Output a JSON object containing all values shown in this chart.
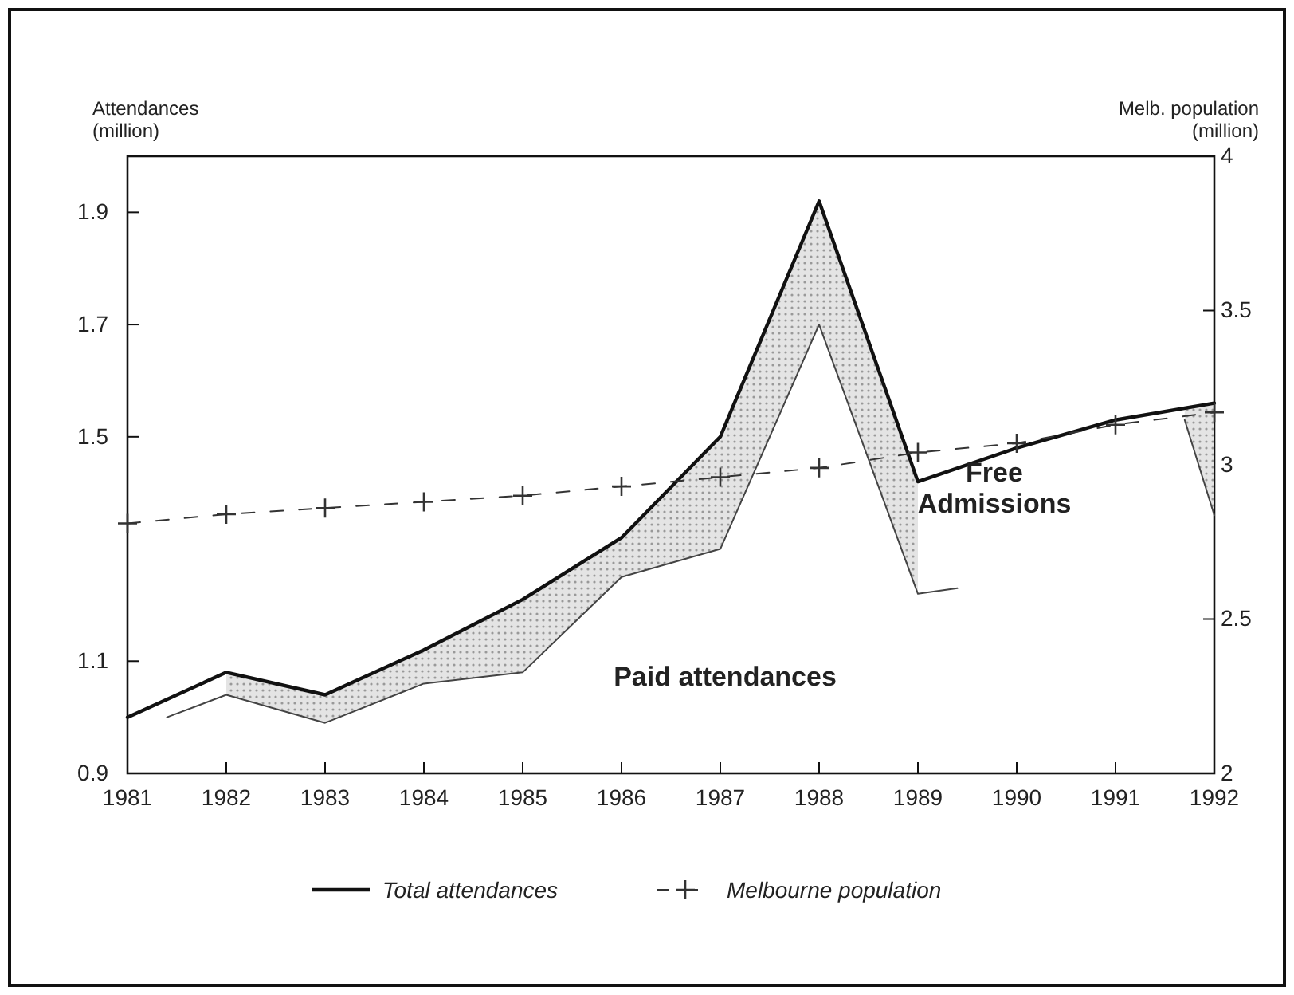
{
  "chart_data": {
    "type": "line",
    "x": [
      1981,
      1982,
      1983,
      1984,
      1985,
      1986,
      1987,
      1988,
      1989,
      1990,
      1991,
      1992
    ],
    "xlim": [
      1981,
      1992
    ],
    "xticks": [
      1981,
      1982,
      1983,
      1984,
      1985,
      1986,
      1987,
      1988,
      1989,
      1990,
      1991,
      1992
    ],
    "ylabel": "Attendances\n(million)",
    "y2label": "Melb. population\n(million)",
    "ylim": [
      0.9,
      2.0
    ],
    "yticks": [
      0.9,
      1.1,
      1.5,
      1.7,
      1.9
    ],
    "y2lim": [
      2,
      4
    ],
    "y2ticks": [
      2,
      2.5,
      3,
      3.5,
      4
    ],
    "grid": false,
    "legend": "bottom",
    "annotations": [
      "Paid attendances",
      "Free\nAdmissions"
    ],
    "series": [
      {
        "name": "Total attendances",
        "color": "#111111",
        "line_style": "solid",
        "marker": "none",
        "values": [
          1.0,
          1.08,
          1.04,
          1.12,
          1.21,
          1.32,
          1.5,
          1.92,
          1.42,
          1.48,
          1.53,
          1.56
        ]
      },
      {
        "color": "#444444",
        "line_style": "solid",
        "marker": "none",
        "x": [
          1981.4,
          1982,
          1983,
          1984,
          1985,
          1986,
          1987,
          1988,
          1989,
          1989.4
        ],
        "values": [
          1.0,
          1.04,
          0.99,
          1.06,
          1.08,
          1.25,
          1.3,
          1.7,
          1.22,
          1.23
        ],
        "lower": [
          null,
          1.04,
          0.99,
          1.06,
          1.08,
          1.25,
          1.3,
          1.7,
          1.22,
          null
        ],
        "upper": [
          null,
          1.08,
          1.04,
          1.12,
          1.21,
          1.32,
          1.5,
          1.92,
          1.42,
          null
        ]
      },
      {
        "color": "#444444",
        "line_style": "solid",
        "marker": "none",
        "x": [
          1991.7,
          1992
        ],
        "values": [
          1.53,
          1.36
        ],
        "lower": [
          1.53,
          1.36
        ],
        "upper": [
          1.55,
          1.56
        ]
      },
      {
        "name": "Melbourne population",
        "color": "#333333",
        "line_style": "dashed",
        "marker": "cross",
        "axis": "y2",
        "values": [
          2.81,
          2.84,
          2.86,
          2.88,
          2.9,
          2.93,
          2.96,
          2.99,
          3.04,
          3.07,
          3.13,
          3.17
        ]
      }
    ]
  }
}
